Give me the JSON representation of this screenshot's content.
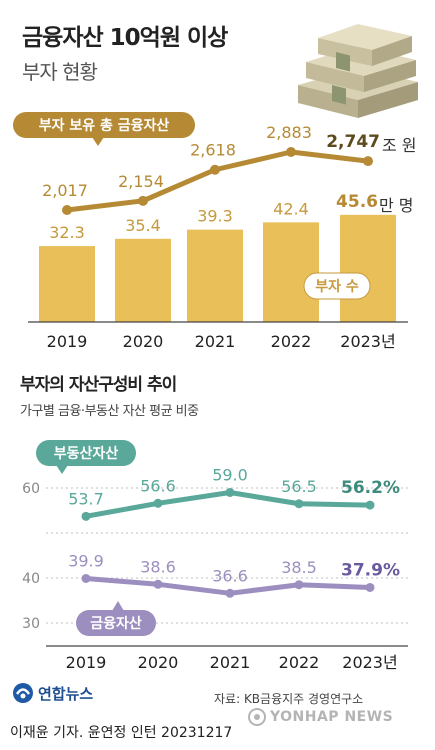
{
  "header": {
    "title": "금융자산 10억원 이상",
    "subtitle": "부자 현황"
  },
  "section2": {
    "title": "부자의 자산구성비 추이",
    "subtitle": "가구별 금융·부동산 자산 평균 비중"
  },
  "footer": {
    "source": "자료: KB금융지주 경영연구소",
    "credit": "이재윤 기자. 윤연정 인턴  20231217",
    "logo_text": "연합뉴스",
    "watermark_text": "YONHAP NEWS"
  },
  "colors": {
    "gold_bar": "#e9bf5a",
    "gold_line": "#b68a34",
    "gold_label": "#c69a3c",
    "green": "#5aa89a",
    "purple": "#9c8fc0",
    "dark_purple": "#6a5a9e"
  },
  "chart_data": [
    {
      "type": "bar",
      "name_label": "부자 수",
      "unit": "만 명",
      "categories": [
        "2019",
        "2020",
        "2021",
        "2022",
        "2023년"
      ],
      "values": [
        32.3,
        35.4,
        39.3,
        42.4,
        45.6
      ],
      "value_labels": [
        "32.3",
        "35.4",
        "39.3",
        "42.4",
        "45.6"
      ]
    },
    {
      "type": "line",
      "name_label": "부자 보유 총 금융자산",
      "unit": "조 원",
      "categories": [
        "2019",
        "2020",
        "2021",
        "2022",
        "2023년"
      ],
      "values": [
        2017,
        2154,
        2618,
        2883,
        2747
      ],
      "value_labels": [
        "2,017",
        "2,154",
        "2,618",
        "2,883",
        "2,747"
      ]
    },
    {
      "type": "line",
      "categories": [
        "2019",
        "2020",
        "2021",
        "2022",
        "2023년"
      ],
      "ylim": [
        25,
        65
      ],
      "yticks": [
        30,
        40,
        50,
        60
      ],
      "grid": true,
      "series": [
        {
          "name": "부동산자산",
          "values": [
            53.7,
            56.6,
            59.0,
            56.5,
            56.2
          ],
          "value_labels": [
            "53.7",
            "56.6",
            "59.0",
            "56.5",
            "56.2"
          ],
          "last_unit": "%"
        },
        {
          "name": "금융자산",
          "values": [
            39.9,
            38.6,
            36.6,
            38.5,
            37.9
          ],
          "value_labels": [
            "39.9",
            "38.6",
            "36.6",
            "38.5",
            "37.9"
          ],
          "last_unit": "%"
        }
      ]
    }
  ]
}
